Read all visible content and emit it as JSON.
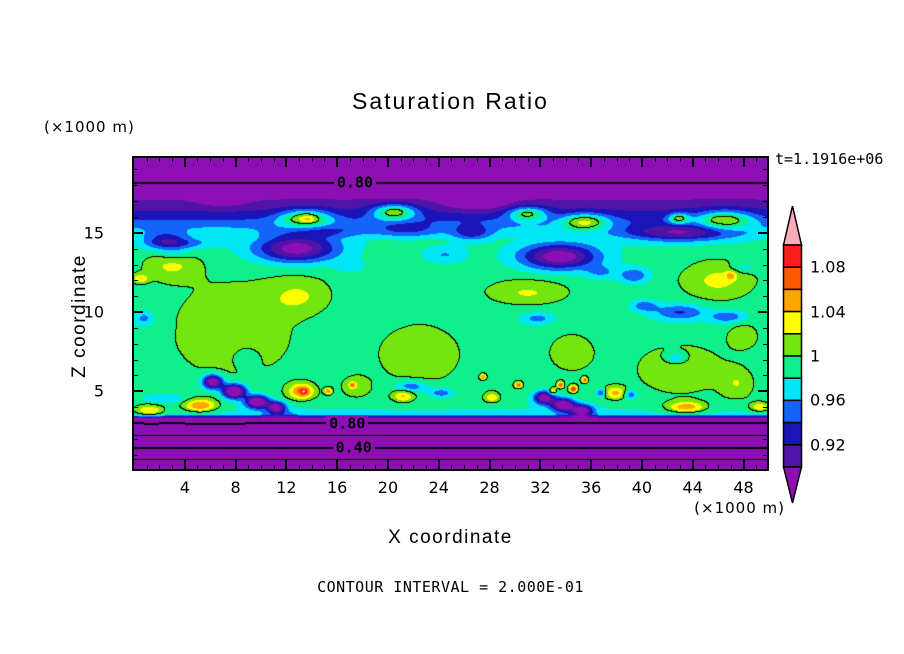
{
  "title": "Saturation Ratio",
  "timestamp": "t=1.1916e+06",
  "axes": {
    "x": {
      "label": "X coordinate",
      "units": "(×1000 m)",
      "range": [
        0,
        49.85
      ],
      "major_ticks": [
        4,
        8,
        12,
        16,
        20,
        24,
        28,
        32,
        36,
        40,
        44,
        48
      ],
      "minor_step": 1
    },
    "z": {
      "label": "Z coordinate",
      "units": "(×1000 m)",
      "range": [
        0.1,
        19.72
      ],
      "major_ticks": [
        5,
        10,
        15
      ],
      "minor_step": 1
    }
  },
  "footer": {
    "note": "CONTOUR INTERVAL = 2.000E-01"
  },
  "colorbar": {
    "tick_labels": [
      "1.08",
      "1.04",
      "1",
      "0.96",
      "0.92"
    ],
    "tick_boundary_index": [
      1,
      3,
      5,
      7,
      9
    ],
    "high_arrow_color": "#FFAAB9",
    "low_arrow_color": "#8C0FB4"
  },
  "chart_data": {
    "type": "heatmap",
    "title": "Saturation Ratio",
    "xlabel": "X coordinate (×1000 m)",
    "ylabel": "Z coordinate (×1000 m)",
    "x_range": [
      0,
      49.85
    ],
    "z_range": [
      0.1,
      19.72
    ],
    "contour_interval": 0.2,
    "fill_levels": [
      0.9,
      0.92,
      0.94,
      0.96,
      0.98,
      1.0,
      1.02,
      1.04,
      1.06,
      1.08,
      1.1
    ],
    "fill_colors": [
      "#8C0FB4",
      "#4F14A5",
      "#1A14B9",
      "#1464FA",
      "#00E6F5",
      "#0FF08C",
      "#74E60F",
      "#FFFF00",
      "#FFA500",
      "#FA5A00",
      "#FA1E1E",
      "#FFAAB9"
    ],
    "line_levels": [
      0.2,
      0.6,
      1.0
    ],
    "thick_line_levels": [
      0.4,
      0.8
    ],
    "contour_labels": [
      {
        "text": "0.80",
        "x": 17.4,
        "z": 18.15
      },
      {
        "text": "0.80",
        "x": 16.8,
        "z": 2.97
      },
      {
        "text": "0.40",
        "x": 17.3,
        "z": 1.45
      }
    ],
    "field": {
      "base_profile": [
        [
          0,
          0.02
        ],
        [
          3.2,
          0.86
        ],
        [
          3.55,
          0.975
        ],
        [
          4.6,
          0.99
        ],
        [
          9,
          0.985
        ],
        [
          12,
          0.99
        ],
        [
          14.6,
          0.985
        ],
        [
          15.3,
          0.962
        ],
        [
          16.2,
          0.925
        ],
        [
          17.1,
          0.9
        ],
        [
          18.15,
          0.8
        ],
        [
          19.75,
          0.7
        ]
      ],
      "blobs": [
        [
          13.5,
          15.9,
          2.0,
          0.55,
          0.085
        ],
        [
          13.7,
          15.9,
          0.5,
          0.25,
          0.025
        ],
        [
          20.5,
          16.3,
          1.7,
          0.5,
          0.09
        ],
        [
          31.0,
          16.2,
          1.5,
          0.45,
          0.08
        ],
        [
          35.5,
          15.7,
          1.8,
          0.5,
          0.08
        ],
        [
          42.9,
          15.9,
          0.8,
          0.35,
          0.075
        ],
        [
          46.5,
          15.8,
          2.2,
          0.6,
          0.08
        ],
        [
          12.8,
          14.0,
          3.2,
          0.85,
          -0.1
        ],
        [
          33.5,
          13.5,
          3.0,
          0.8,
          -0.105
        ],
        [
          43.0,
          15.0,
          4.5,
          0.55,
          -0.075
        ],
        [
          26.6,
          15.0,
          1.5,
          0.5,
          -0.05
        ],
        [
          2.5,
          14.5,
          1.8,
          0.6,
          -0.055
        ],
        [
          4.0,
          14.35,
          2.5,
          0.35,
          -0.03
        ],
        [
          21.5,
          15.2,
          2.5,
          0.5,
          -0.035
        ],
        [
          15.0,
          15.1,
          3.0,
          0.45,
          -0.03
        ],
        [
          39.4,
          12.3,
          1.2,
          0.5,
          -0.045
        ],
        [
          48.0,
          12.8,
          1.0,
          0.35,
          -0.025
        ],
        [
          27.0,
          16.9,
          2.5,
          0.5,
          -0.035
        ],
        [
          7.0,
          17.0,
          2.0,
          0.4,
          -0.02
        ],
        [
          7.8,
          8.8,
          5.0,
          2.8,
          0.033
        ],
        [
          3.0,
          13.0,
          2.2,
          1.0,
          0.035
        ],
        [
          0.5,
          12.1,
          0.6,
          0.3,
          0.045
        ],
        [
          13.0,
          11.0,
          2.5,
          1.2,
          0.03
        ],
        [
          22.5,
          7.5,
          3.5,
          2.0,
          0.03
        ],
        [
          31.0,
          11.2,
          3.2,
          0.8,
          0.033
        ],
        [
          46.0,
          12.0,
          2.8,
          1.3,
          0.035
        ],
        [
          47.0,
          12.3,
          0.4,
          0.25,
          0.04
        ],
        [
          43.0,
          6.5,
          3.5,
          1.6,
          0.03
        ],
        [
          48.0,
          8.5,
          1.5,
          1.0,
          0.025
        ],
        [
          47.5,
          5.5,
          1.3,
          1.0,
          0.028
        ],
        [
          17.5,
          5.3,
          1.2,
          0.7,
          0.025
        ],
        [
          34.5,
          7.5,
          2.0,
          1.3,
          0.028
        ],
        [
          8.8,
          7.2,
          1.1,
          0.7,
          -0.022
        ],
        [
          3.2,
          13.7,
          1.3,
          0.45,
          -0.025
        ],
        [
          0.8,
          9.6,
          0.8,
          0.5,
          -0.035
        ],
        [
          17.0,
          12.9,
          1.1,
          0.4,
          -0.022
        ],
        [
          24.5,
          13.6,
          1.6,
          0.5,
          -0.028
        ],
        [
          36.8,
          12.5,
          1.3,
          0.45,
          -0.028
        ],
        [
          43.0,
          10.0,
          2.0,
          0.5,
          -0.05
        ],
        [
          46.8,
          9.7,
          1.4,
          0.4,
          -0.045
        ],
        [
          40.2,
          10.4,
          1.0,
          0.35,
          -0.04
        ],
        [
          31.8,
          9.6,
          1.2,
          0.35,
          -0.035
        ],
        [
          21.8,
          5.3,
          1.3,
          0.35,
          -0.05
        ],
        [
          24.2,
          4.9,
          1.0,
          0.3,
          -0.045
        ],
        [
          42.7,
          7.1,
          0.9,
          0.4,
          -0.045
        ],
        [
          36.8,
          4.9,
          0.4,
          0.25,
          -0.06
        ],
        [
          39.1,
          4.8,
          0.5,
          0.3,
          -0.05
        ],
        [
          2.5,
          4.55,
          1.8,
          0.3,
          -0.03
        ],
        [
          6.2,
          5.6,
          0.8,
          0.45,
          -0.12
        ],
        [
          7.9,
          5.0,
          0.9,
          0.45,
          -0.14
        ],
        [
          9.7,
          4.35,
          0.9,
          0.4,
          -0.13
        ],
        [
          11.2,
          4.0,
          0.7,
          0.35,
          -0.1
        ],
        [
          32.3,
          4.6,
          0.8,
          0.4,
          -0.11
        ],
        [
          33.8,
          4.15,
          0.9,
          0.4,
          -0.12
        ],
        [
          35.3,
          3.8,
          0.8,
          0.35,
          -0.1
        ],
        [
          5.2,
          4.1,
          1.3,
          0.4,
          0.075
        ],
        [
          1.2,
          3.8,
          1.2,
          0.35,
          0.06
        ],
        [
          13.2,
          5.0,
          1.0,
          0.5,
          0.075
        ],
        [
          13.4,
          5.0,
          0.3,
          0.2,
          0.045
        ],
        [
          21.2,
          4.7,
          0.8,
          0.4,
          0.05
        ],
        [
          28.2,
          4.6,
          0.6,
          0.35,
          0.045
        ],
        [
          43.5,
          4.0,
          1.5,
          0.35,
          0.07
        ],
        [
          49.3,
          4.0,
          0.8,
          0.3,
          0.055
        ],
        [
          37.9,
          4.9,
          0.9,
          0.4,
          0.055
        ],
        [
          33.6,
          5.4,
          0.25,
          0.2,
          0.09
        ],
        [
          34.6,
          5.15,
          0.3,
          0.22,
          0.1
        ],
        [
          35.5,
          5.7,
          0.22,
          0.18,
          0.08
        ],
        [
          33.0,
          5.0,
          0.25,
          0.2,
          0.07
        ],
        [
          30.3,
          5.4,
          0.3,
          0.2,
          0.08
        ],
        [
          17.2,
          5.4,
          0.25,
          0.18,
          0.06
        ],
        [
          15.3,
          5.0,
          0.3,
          0.2,
          0.07
        ],
        [
          27.5,
          5.9,
          0.25,
          0.18,
          0.07
        ],
        [
          11.5,
          3.5,
          1.5,
          0.4,
          -0.025
        ],
        [
          35.0,
          3.4,
          1.5,
          0.4,
          -0.02
        ]
      ]
    }
  }
}
